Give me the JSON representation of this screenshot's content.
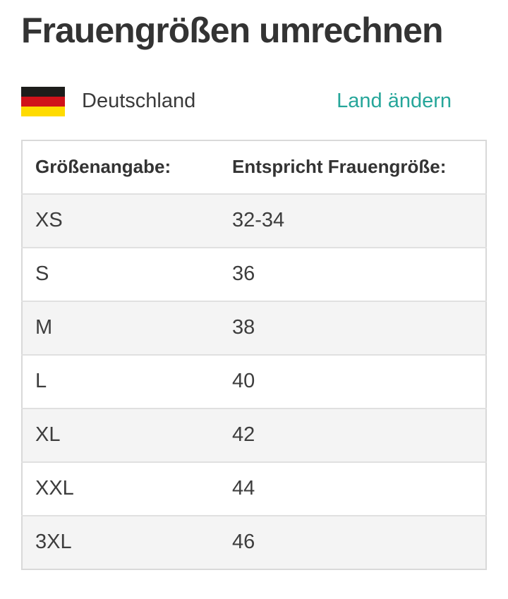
{
  "page": {
    "title": "Frauengrößen umrechnen"
  },
  "country": {
    "name": "Deutschland",
    "change_link_label": "Land ändern",
    "flag_icon": "germany-flag-icon",
    "flag_colors": [
      "#1d1d1b",
      "#d0121a",
      "#ffdb00"
    ]
  },
  "table": {
    "headers": [
      "Größenangabe:",
      "Entspricht Frauengröße:"
    ],
    "rows": [
      {
        "size": "XS",
        "value": "32-34"
      },
      {
        "size": "S",
        "value": "36"
      },
      {
        "size": "M",
        "value": "38"
      },
      {
        "size": "L",
        "value": "40"
      },
      {
        "size": "XL",
        "value": "42"
      },
      {
        "size": "XXL",
        "value": "44"
      },
      {
        "size": "3XL",
        "value": "46"
      }
    ]
  },
  "colors": {
    "accent_link": "#26a69a",
    "title_text": "#333333",
    "body_text": "#3d3d3d",
    "row_alt_background": "#f4f4f4",
    "table_border": "#d9d9d9"
  }
}
